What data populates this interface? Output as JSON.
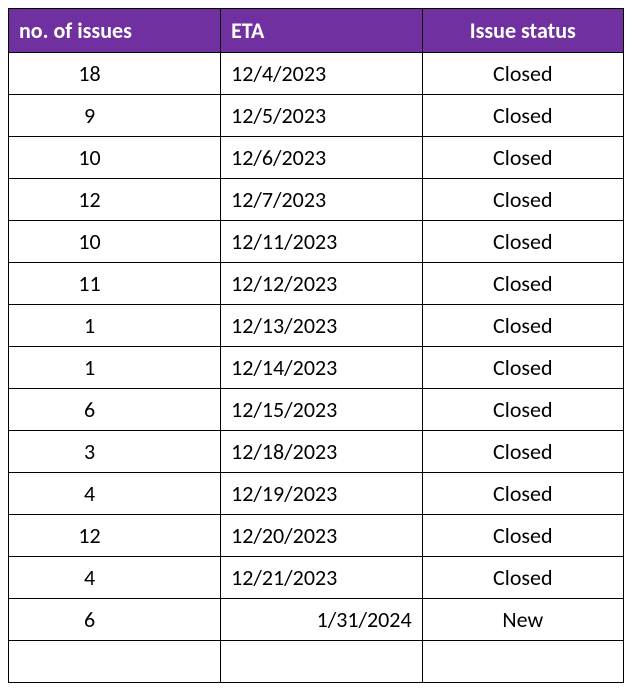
{
  "table": {
    "header_bg_color": "#7030a0",
    "header_text_color": "#ffffff",
    "border_color": "#000000",
    "cell_bg_color": "#ffffff",
    "font_size": 22,
    "columns": [
      {
        "key": "issues",
        "label": "no. of issues",
        "align": "left"
      },
      {
        "key": "eta",
        "label": "ETA",
        "align": "left"
      },
      {
        "key": "status",
        "label": "Issue status",
        "align": "center"
      }
    ],
    "rows": [
      {
        "issues": "18",
        "eta": "12/4/2023",
        "status": "Closed",
        "eta_align": "left"
      },
      {
        "issues": "9",
        "eta": "12/5/2023",
        "status": "Closed",
        "eta_align": "left"
      },
      {
        "issues": "10",
        "eta": "12/6/2023",
        "status": "Closed",
        "eta_align": "left"
      },
      {
        "issues": "12",
        "eta": "12/7/2023",
        "status": "Closed",
        "eta_align": "left"
      },
      {
        "issues": "10",
        "eta": "12/11/2023",
        "status": "Closed",
        "eta_align": "left"
      },
      {
        "issues": "11",
        "eta": "12/12/2023",
        "status": "Closed",
        "eta_align": "left"
      },
      {
        "issues": "1",
        "eta": "12/13/2023",
        "status": "Closed",
        "eta_align": "left"
      },
      {
        "issues": "1",
        "eta": "12/14/2023",
        "status": "Closed",
        "eta_align": "left"
      },
      {
        "issues": "6",
        "eta": "12/15/2023",
        "status": "Closed",
        "eta_align": "left"
      },
      {
        "issues": "3",
        "eta": "12/18/2023",
        "status": "Closed",
        "eta_align": "left"
      },
      {
        "issues": "4",
        "eta": "12/19/2023",
        "status": "Closed",
        "eta_align": "left"
      },
      {
        "issues": "12",
        "eta": "12/20/2023",
        "status": "Closed",
        "eta_align": "left"
      },
      {
        "issues": "4",
        "eta": "12/21/2023",
        "status": "Closed",
        "eta_align": "left"
      },
      {
        "issues": "6",
        "eta": "1/31/2024",
        "status": "New",
        "eta_align": "right"
      }
    ],
    "empty_rows": 1
  }
}
